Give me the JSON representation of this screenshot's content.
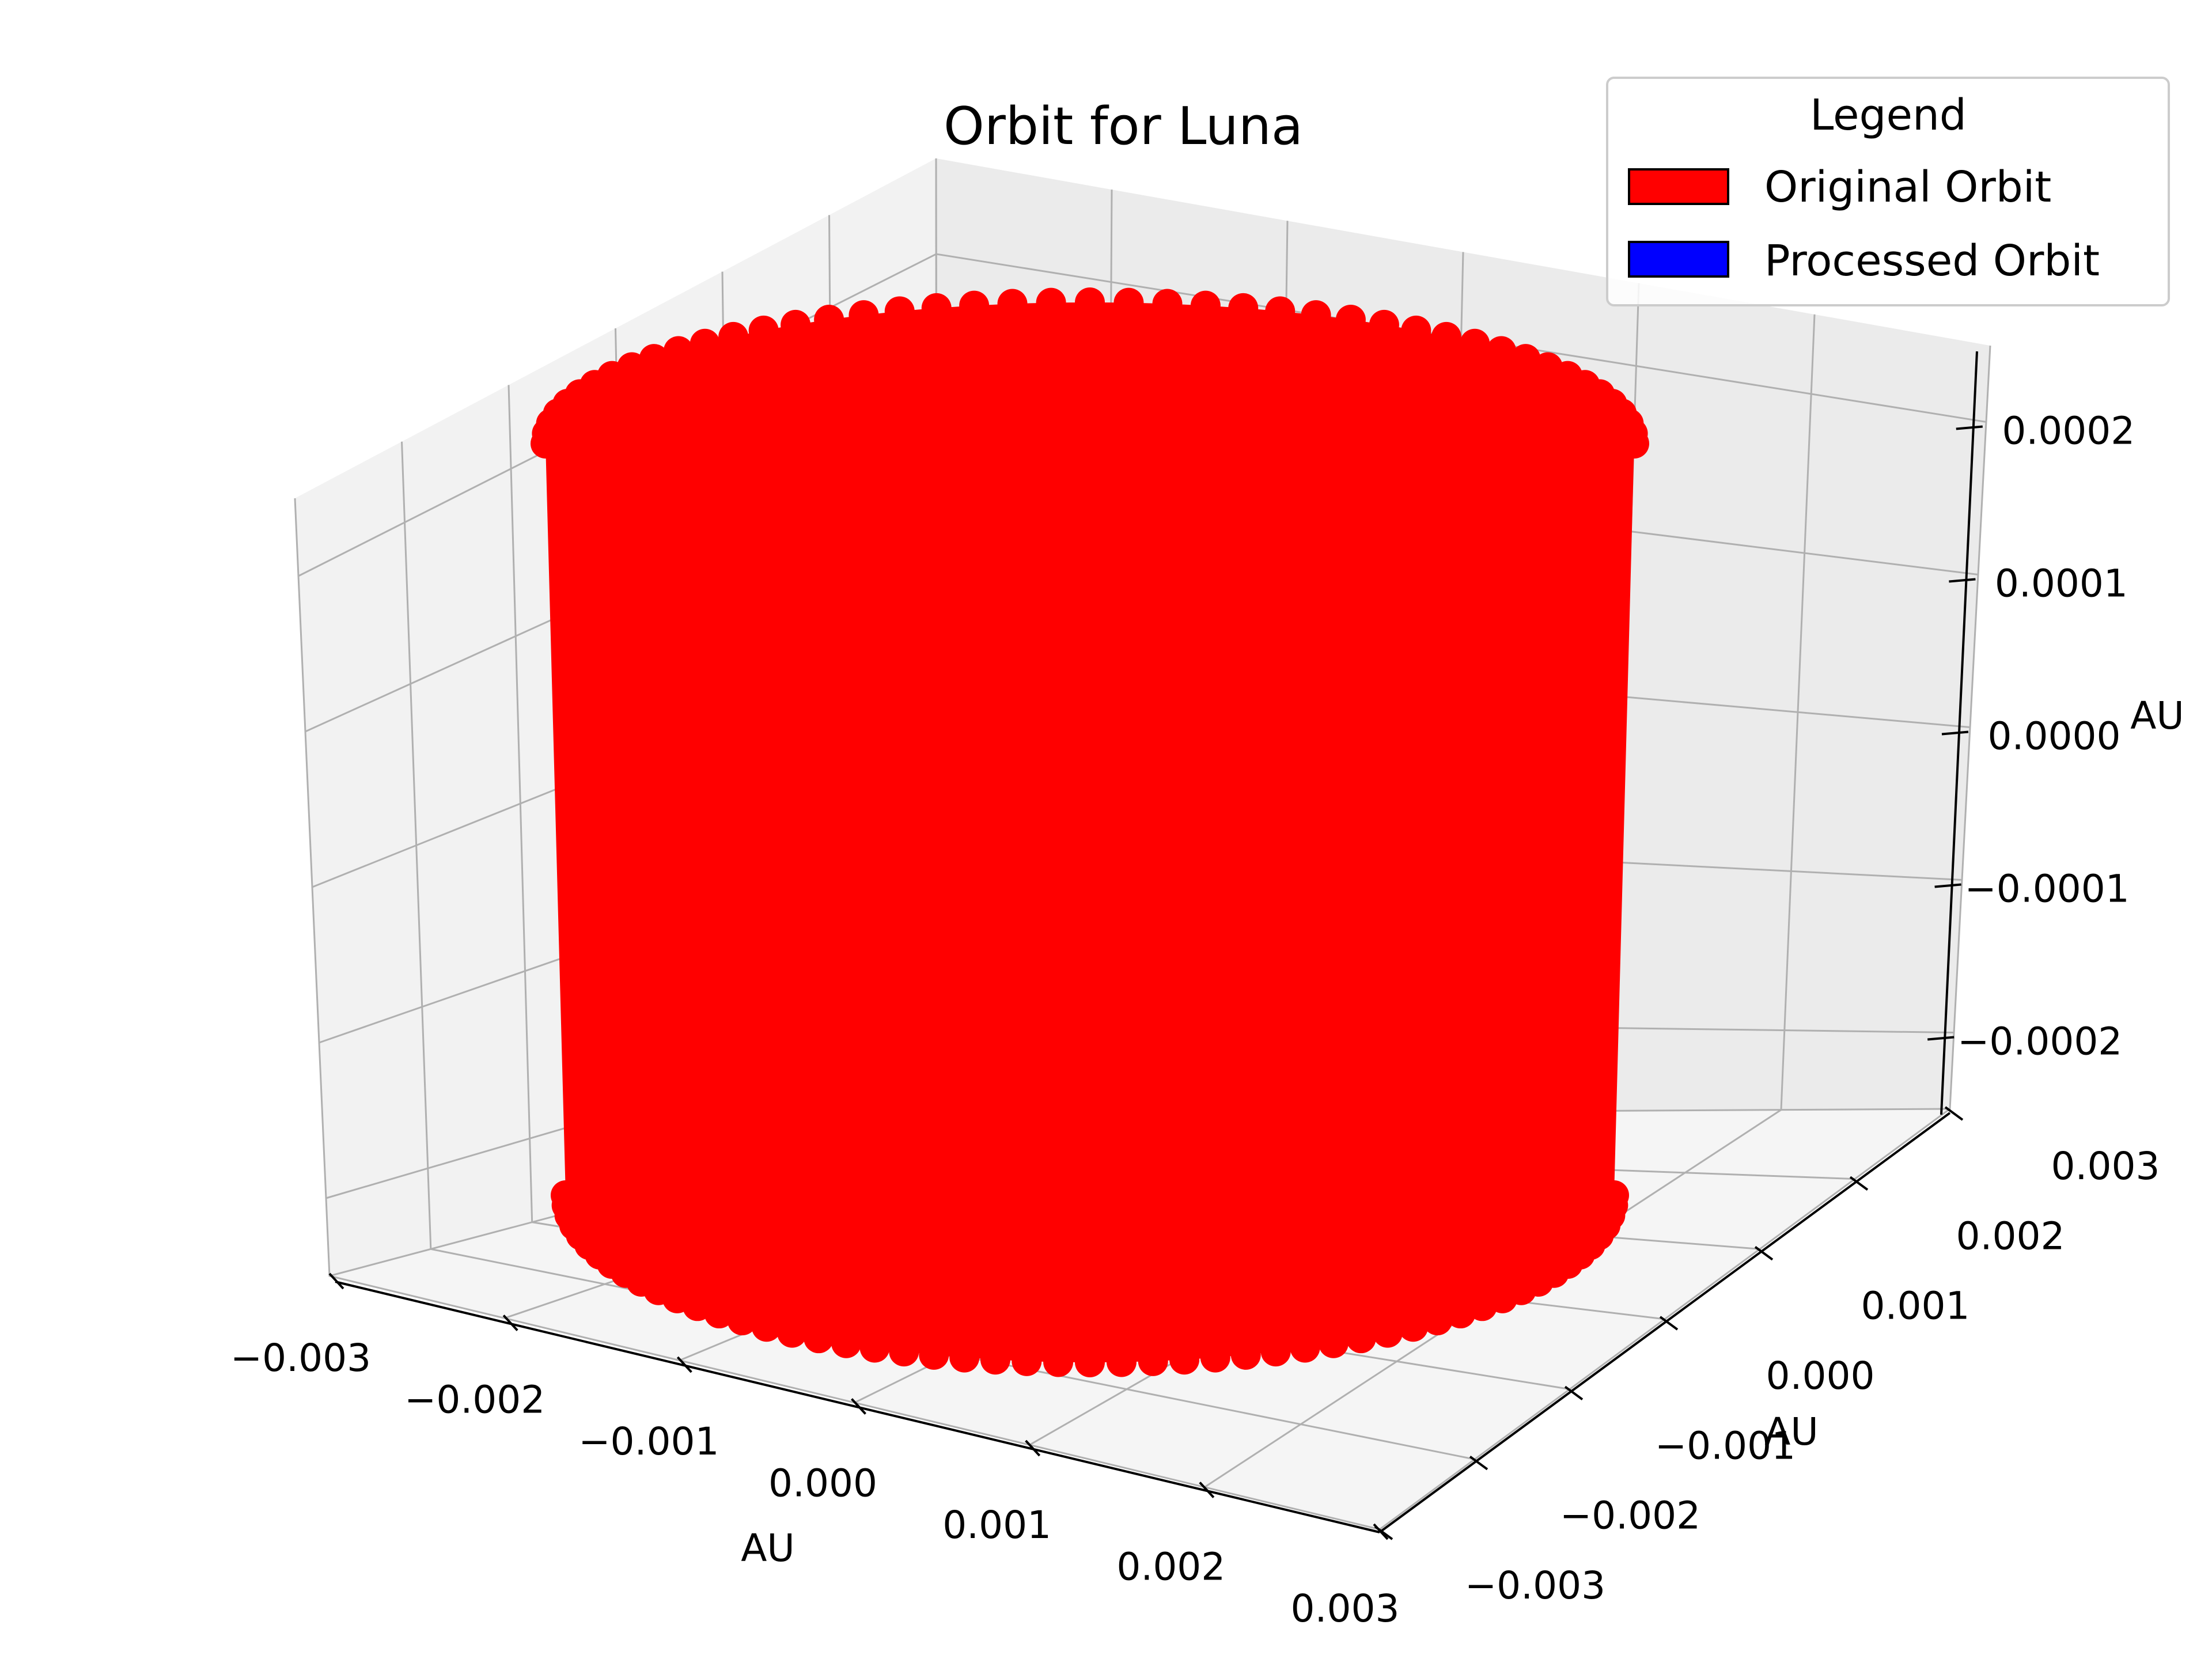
{
  "chart_data": {
    "type": "scatter",
    "projection": "3d",
    "title": "Orbit for Luna",
    "xlabel": "AU",
    "ylabel": "AU",
    "zlabel": "AU",
    "xlim": [
      -0.003,
      0.003
    ],
    "ylim": [
      -0.003,
      0.003
    ],
    "zlim": [
      -0.00025,
      0.00025
    ],
    "xticks": [
      "−0.003",
      "−0.002",
      "−0.001",
      "0.000",
      "0.001",
      "0.002",
      "0.003"
    ],
    "yticks": [
      "−0.003",
      "−0.002",
      "−0.001",
      "0.000",
      "0.001",
      "0.002",
      "0.003"
    ],
    "zticks": [
      "−0.0002",
      "−0.0001",
      "0.0000",
      "0.0001",
      "0.0002"
    ],
    "grid": true,
    "legend": {
      "title": "Legend",
      "placement": "top-right",
      "entries": [
        {
          "label": "Original Orbit",
          "color": "#ff0000"
        },
        {
          "label": "Processed Orbit",
          "color": "#0000ff"
        }
      ]
    },
    "series": [
      {
        "name": "Original Orbit",
        "color": "#ff0000",
        "shape": "cylinder",
        "radius_au": 0.00257,
        "z_range": [
          -0.00025,
          0.00025
        ]
      }
    ]
  }
}
